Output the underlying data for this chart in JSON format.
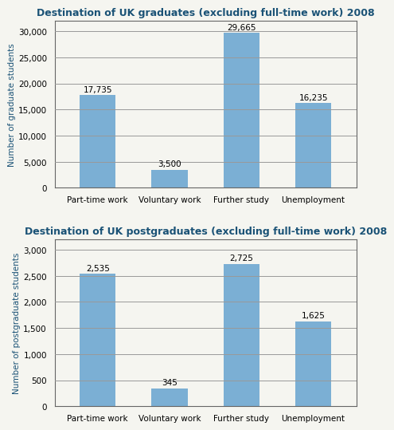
{
  "grad_title": "Destination of UK graduates (excluding full-time work) 2008",
  "postgrad_title": "Destination of UK postgraduates (excluding full-time work) 2008",
  "categories": [
    "Part-time work",
    "Voluntary work",
    "Further study",
    "Unemployment"
  ],
  "grad_values": [
    17735,
    3500,
    29665,
    16235
  ],
  "grad_labels": [
    "17,735",
    "3,500",
    "29,665",
    "16,235"
  ],
  "postgrad_values": [
    2535,
    345,
    2725,
    1625
  ],
  "postgrad_labels": [
    "2,535",
    "345",
    "2,725",
    "1,625"
  ],
  "bar_color": "#7bafd4",
  "title_color": "#1a5276",
  "grad_ylabel": "Number of graduate students",
  "postgrad_ylabel": "Number of postgraduate students",
  "grad_ylim": [
    0,
    32000
  ],
  "postgrad_ylim": [
    0,
    3200
  ],
  "grad_yticks": [
    0,
    5000,
    10000,
    15000,
    20000,
    25000,
    30000
  ],
  "postgrad_yticks": [
    0,
    500,
    1000,
    1500,
    2000,
    2500,
    3000
  ],
  "background_color": "#f5f5f0",
  "plot_bg_color": "#f5f5f0",
  "title_fontsize": 9.0,
  "label_fontsize": 7.5,
  "tick_fontsize": 7.5,
  "ylabel_fontsize": 7.5,
  "bar_width": 0.5,
  "grid_color": "#999999",
  "grid_linewidth": 0.6,
  "spine_color": "#666666"
}
